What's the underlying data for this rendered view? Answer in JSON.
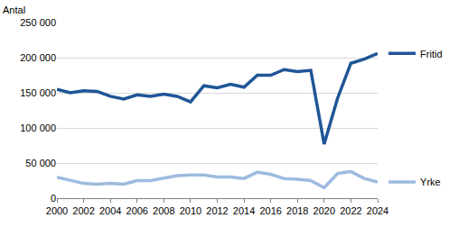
{
  "chart_data": {
    "type": "line",
    "y_label": "Antal",
    "x": [
      2000,
      2001,
      2002,
      2003,
      2004,
      2005,
      2006,
      2007,
      2008,
      2009,
      2010,
      2011,
      2012,
      2013,
      2014,
      2015,
      2016,
      2017,
      2018,
      2019,
      2020,
      2021,
      2022,
      2023,
      2024
    ],
    "series": [
      {
        "name": "Fritid",
        "color": "#1f5597",
        "values": [
          155000,
          150000,
          153000,
          152000,
          145000,
          141000,
          147000,
          145000,
          148000,
          145000,
          137000,
          160000,
          157000,
          162000,
          158000,
          175000,
          175000,
          183000,
          180000,
          182000,
          77000,
          142000,
          192000,
          198000,
          206000
        ]
      },
      {
        "name": "Yrke",
        "color": "#9dbbdf",
        "values": [
          30000,
          26000,
          21000,
          20000,
          21000,
          20000,
          25000,
          25000,
          28000,
          32000,
          33000,
          33000,
          30000,
          30000,
          28000,
          37000,
          34000,
          28000,
          27000,
          25000,
          15000,
          35000,
          38000,
          28000,
          23000
        ]
      }
    ],
    "xlim": [
      2000,
      2024
    ],
    "xticks": [
      2000,
      2002,
      2004,
      2006,
      2008,
      2010,
      2012,
      2014,
      2016,
      2018,
      2020,
      2022,
      2024
    ],
    "ylim": [
      0,
      250000
    ],
    "yticks": [
      0,
      {
        "value": 50000,
        "label": "50 000"
      },
      {
        "value": 100000,
        "label": "100 000"
      },
      {
        "value": 150000,
        "label": "150 000"
      },
      {
        "value": 200000,
        "label": "200 000"
      },
      {
        "value": 250000,
        "label": "250 000"
      }
    ],
    "grid": true,
    "legend": "right"
  }
}
